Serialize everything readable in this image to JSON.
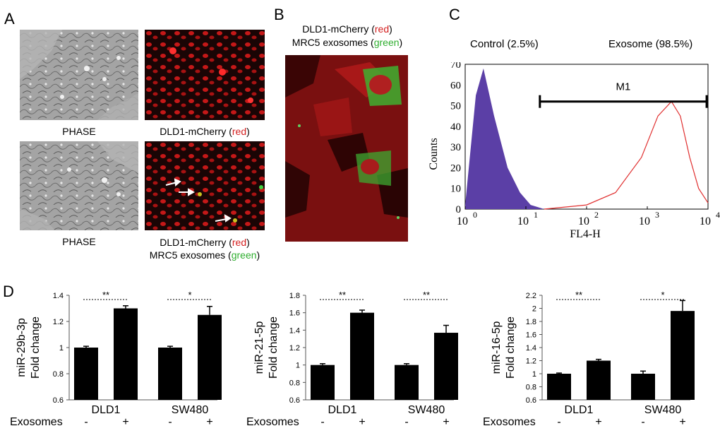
{
  "panels": {
    "A": {
      "letter": "A",
      "captions": {
        "top_left": "PHASE",
        "top_right": "DLD1-mCherry (",
        "top_right_color": "red",
        "top_right_end": ")",
        "bottom_left": "PHASE",
        "bottom_right_l1_a": "DLD1-mCherry (",
        "bottom_right_l1_color": "red",
        "bottom_right_l1_end": ")",
        "bottom_right_l2_a": "MRC5 exosomes (",
        "bottom_right_l2_color": "green",
        "bottom_right_l2_end": ")"
      }
    },
    "B": {
      "letter": "B",
      "title_l1_a": "DLD1-mCherry (",
      "title_l1_color": "red",
      "title_l1_end": ")",
      "title_l2_a": "MRC5 exosomes (",
      "title_l2_color": "green",
      "title_l2_end": ")"
    },
    "C": {
      "letter": "C",
      "control_label": "Control (2.5%)",
      "exosome_label": "Exosome (98.5%)",
      "gate_label": "M1",
      "ylabel": "Counts",
      "xlabel": "FL4-H",
      "y_ticks": [
        "0",
        "10",
        "20",
        "30",
        "40",
        "50",
        "60",
        "70"
      ],
      "x_ticks": [
        {
          "base": "10",
          "exp": "0"
        },
        {
          "base": "10",
          "exp": "1"
        },
        {
          "base": "10",
          "exp": "2"
        },
        {
          "base": "10",
          "exp": "3"
        },
        {
          "base": "10",
          "exp": "4"
        }
      ],
      "colors": {
        "control_fill": "#5b3fa6",
        "exosome_line": "#e03030"
      }
    },
    "D": {
      "letter": "D",
      "exosomes_label": "Exosomes",
      "minus": "-",
      "plus": "+"
    }
  },
  "chart_data": [
    {
      "type": "area",
      "series": [
        {
          "name": "Control (2.5%)",
          "x": [
            1,
            1.5,
            2,
            3,
            5,
            8,
            12,
            20
          ],
          "y": [
            2,
            55,
            68,
            45,
            20,
            8,
            2,
            0
          ]
        },
        {
          "name": "Exosome (98.5%)",
          "x": [
            20,
            100,
            300,
            800,
            1500,
            2500,
            3500,
            5000,
            7000,
            10000
          ],
          "y": [
            0,
            2,
            8,
            25,
            45,
            52,
            45,
            25,
            10,
            3
          ]
        }
      ],
      "xlabel": "FL4-H",
      "ylabel": "Counts",
      "xscale": "log",
      "xlim": [
        1,
        10000
      ],
      "ylim": [
        0,
        70
      ],
      "gate": {
        "label": "M1",
        "range": [
          17,
          9500
        ]
      }
    },
    {
      "type": "bar",
      "ylabel": "miR-29b-3p Fold change",
      "groups": [
        "DLD1",
        "SW480"
      ],
      "values": [
        1.0,
        1.3,
        1.0,
        1.25
      ],
      "errors": [
        0.01,
        0.02,
        0.01,
        0.065
      ],
      "exosomes": [
        "-",
        "+",
        "-",
        "+"
      ],
      "ylim": [
        0.6,
        1.4
      ],
      "y_ticks": [
        "0.6",
        "0.8",
        "1",
        "1.2",
        "1.4"
      ],
      "significance": [
        "**",
        "*"
      ]
    },
    {
      "type": "bar",
      "ylabel": "miR-21-5p Fold change",
      "groups": [
        "DLD1",
        "SW480"
      ],
      "values": [
        1.0,
        1.6,
        1.0,
        1.37
      ],
      "errors": [
        0.015,
        0.03,
        0.015,
        0.085
      ],
      "exosomes": [
        "-",
        "+",
        "-",
        "+"
      ],
      "ylim": [
        0.6,
        1.8
      ],
      "y_ticks": [
        "0.6",
        "0.8",
        "1",
        "1.2",
        "1.4",
        "1.6",
        "1.8"
      ],
      "significance": [
        "**",
        "**"
      ]
    },
    {
      "type": "bar",
      "ylabel": "miR-16-5p Fold change",
      "groups": [
        "DLD1",
        "SW480"
      ],
      "values": [
        1.0,
        1.2,
        1.0,
        1.96
      ],
      "errors": [
        0.01,
        0.02,
        0.04,
        0.16
      ],
      "exosomes": [
        "-",
        "+",
        "-",
        "+"
      ],
      "ylim": [
        0.6,
        2.2
      ],
      "y_ticks": [
        "0.6",
        "0.8",
        "1",
        "1.2",
        "1.4",
        "1.6",
        "1.8",
        "2",
        "2.2"
      ],
      "significance": [
        "**",
        "*"
      ]
    }
  ]
}
